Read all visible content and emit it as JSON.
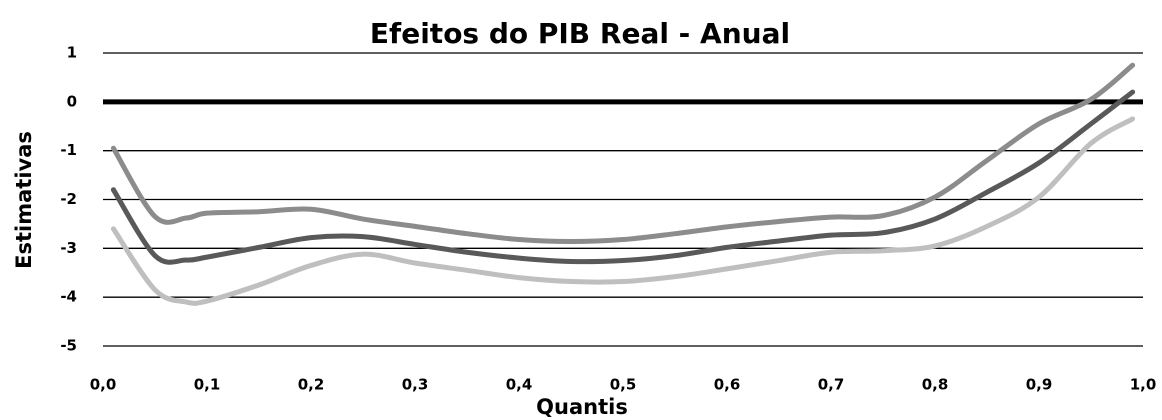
{
  "chart_data": {
    "type": "line",
    "title": "Efeitos do PIB Real - Anual",
    "x_label": "Quantis",
    "y_label": "Estimativas",
    "x": [
      0.01,
      0.05,
      0.08,
      0.1,
      0.15,
      0.2,
      0.25,
      0.3,
      0.35,
      0.4,
      0.45,
      0.5,
      0.55,
      0.6,
      0.65,
      0.7,
      0.75,
      0.8,
      0.85,
      0.9,
      0.95,
      0.99
    ],
    "series": [
      {
        "color": "#8c8c8c",
        "values": [
          -0.95,
          -2.35,
          -2.38,
          -2.28,
          -2.25,
          -2.2,
          -2.4,
          -2.55,
          -2.7,
          -2.82,
          -2.86,
          -2.82,
          -2.7,
          -2.56,
          -2.45,
          -2.36,
          -2.33,
          -1.95,
          -1.2,
          -0.45,
          0.05,
          0.75
        ]
      },
      {
        "color": "#595959",
        "values": [
          -1.8,
          -3.15,
          -3.24,
          -3.18,
          -2.98,
          -2.78,
          -2.76,
          -2.92,
          -3.08,
          -3.2,
          -3.27,
          -3.25,
          -3.15,
          -2.98,
          -2.85,
          -2.73,
          -2.68,
          -2.4,
          -1.85,
          -1.25,
          -0.45,
          0.2
        ]
      },
      {
        "color": "#bfbfbf",
        "values": [
          -2.6,
          -3.85,
          -4.1,
          -4.08,
          -3.75,
          -3.35,
          -3.12,
          -3.3,
          -3.45,
          -3.6,
          -3.68,
          -3.68,
          -3.58,
          -3.42,
          -3.25,
          -3.08,
          -3.05,
          -2.95,
          -2.55,
          -1.95,
          -0.85,
          -0.35
        ]
      }
    ],
    "xlim": [
      0,
      1
    ],
    "xticks": [
      {
        "value": 0,
        "label": "0,0"
      },
      {
        "value": 0.1,
        "label": "0,1"
      },
      {
        "value": 0.2,
        "label": "0,2"
      },
      {
        "value": 0.3,
        "label": "0,3"
      },
      {
        "value": 0.4,
        "label": "0,4"
      },
      {
        "value": 0.5,
        "label": "0,5"
      },
      {
        "value": 0.6,
        "label": "0,6"
      },
      {
        "value": 0.7,
        "label": "0,7"
      },
      {
        "value": 0.8,
        "label": "0,8"
      },
      {
        "value": 0.9,
        "label": "0,9"
      },
      {
        "value": 1,
        "label": "1,0"
      }
    ],
    "ylim": [
      -5,
      1
    ],
    "yticks": [
      1,
      0,
      -1,
      -2,
      -3,
      -4,
      -5
    ],
    "grid": true,
    "zero_line": true
  }
}
